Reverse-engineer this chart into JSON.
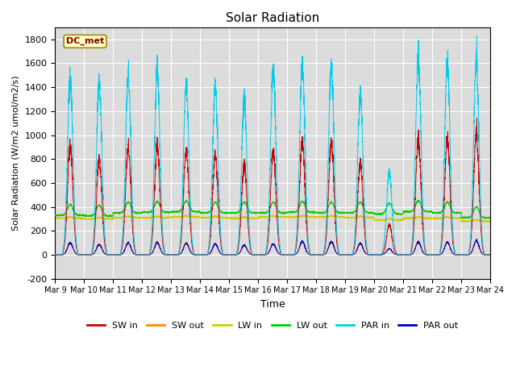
{
  "title": "Solar Radiation",
  "ylabel": "Solar Radiation (W/m2 umol/m2/s)",
  "xlabel": "Time",
  "ylim": [
    -200,
    1900
  ],
  "yticks": [
    -200,
    0,
    200,
    400,
    600,
    800,
    1000,
    1200,
    1400,
    1600,
    1800
  ],
  "x_labels": [
    "Mar 9",
    "Mar 10",
    "Mar 11",
    "Mar 12",
    "Mar 13",
    "Mar 14",
    "Mar 15",
    "Mar 16",
    "Mar 17",
    "Mar 18",
    "Mar 19",
    "Mar 20",
    "Mar 21",
    "Mar 22",
    "Mar 23",
    "Mar 24"
  ],
  "bg_color": "#dcdcdc",
  "grid_color": "#ffffff",
  "legend_entries": [
    "SW in",
    "SW out",
    "LW in",
    "LW out",
    "PAR in",
    "PAR out"
  ],
  "legend_colors": [
    "#cc0000",
    "#ff8800",
    "#cccc00",
    "#00cc00",
    "#00ccee",
    "#0000bb"
  ],
  "annotation_text": "DC_met",
  "annotation_bg": "#ffffcc",
  "annotation_border": "#aa8800",
  "n_days": 15,
  "sw_in_peaks": [
    920,
    810,
    900,
    890,
    870,
    830,
    750,
    870,
    940,
    950,
    760,
    250,
    960,
    970,
    1000
  ],
  "par_in_peaks": [
    1490,
    1460,
    1500,
    1510,
    1430,
    1400,
    1300,
    1560,
    1580,
    1590,
    1330,
    690,
    1650,
    1610,
    1600
  ],
  "lw_out_base": [
    330,
    325,
    350,
    355,
    360,
    350,
    350,
    350,
    355,
    350,
    350,
    340,
    360,
    350,
    310
  ],
  "lw_in_base": [
    305,
    300,
    310,
    310,
    315,
    310,
    305,
    315,
    315,
    315,
    310,
    290,
    305,
    305,
    280
  ],
  "sw_out_peaks": [
    100,
    90,
    100,
    100,
    100,
    90,
    80,
    90,
    110,
    105,
    90,
    50,
    110,
    105,
    115
  ],
  "par_out_peaks": [
    100,
    85,
    100,
    100,
    95,
    90,
    80,
    90,
    110,
    110,
    95,
    50,
    105,
    105,
    115
  ]
}
